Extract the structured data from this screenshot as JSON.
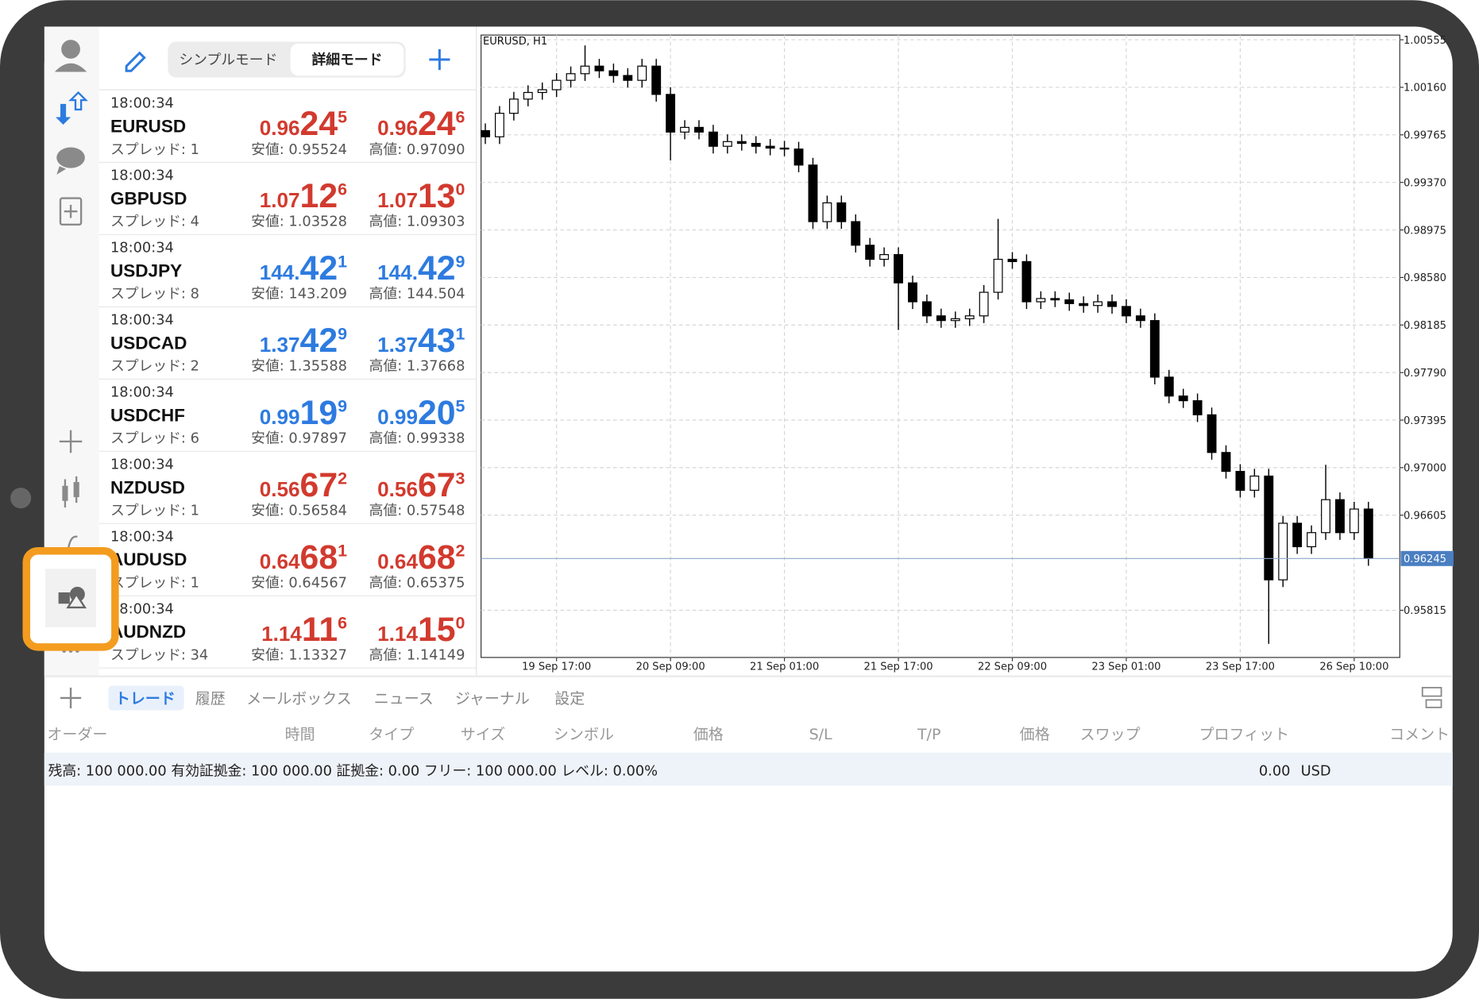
{
  "toolbar": {
    "mode_tabs": [
      "シンプルモード",
      "詳細モード"
    ]
  },
  "quotes": [
    {
      "time": "18:00:34",
      "symbol": "EURUSD",
      "color": "#d23a2e",
      "bid": [
        "0.96",
        "24",
        "5"
      ],
      "ask": [
        "0.96",
        "24",
        "6"
      ],
      "spread": "スプレッド: 1",
      "low": "安値: 0.95524",
      "high": "高値: 0.97090"
    },
    {
      "time": "18:00:34",
      "symbol": "GBPUSD",
      "color": "#d23a2e",
      "bid": [
        "1.07",
        "12",
        "6"
      ],
      "ask": [
        "1.07",
        "13",
        "0"
      ],
      "spread": "スプレッド: 4",
      "low": "安値: 1.03528",
      "high": "高値: 1.09303"
    },
    {
      "time": "18:00:34",
      "symbol": "USDJPY",
      "color": "#2d7be0",
      "bid": [
        "144.",
        "42",
        "1"
      ],
      "ask": [
        "144.",
        "42",
        "9"
      ],
      "spread": "スプレッド: 8",
      "low": "安値: 143.209",
      "high": "高値: 144.504"
    },
    {
      "time": "18:00:34",
      "symbol": "USDCAD",
      "color": "#2d7be0",
      "bid": [
        "1.37",
        "42",
        "9"
      ],
      "ask": [
        "1.37",
        "43",
        "1"
      ],
      "spread": "スプレッド: 2",
      "low": "安値: 1.35588",
      "high": "高値: 1.37668"
    },
    {
      "time": "18:00:34",
      "symbol": "USDCHF",
      "color": "#2d7be0",
      "bid": [
        "0.99",
        "19",
        "9"
      ],
      "ask": [
        "0.99",
        "20",
        "5"
      ],
      "spread": "スプレッド: 6",
      "low": "安値: 0.97897",
      "high": "高値: 0.99338"
    },
    {
      "time": "18:00:34",
      "symbol": "NZDUSD",
      "color": "#d23a2e",
      "bid": [
        "0.56",
        "67",
        "2"
      ],
      "ask": [
        "0.56",
        "67",
        "3"
      ],
      "spread": "スプレッド: 1",
      "low": "安値: 0.56584",
      "high": "高値: 0.57548"
    },
    {
      "time": "18:00:34",
      "symbol": "AUDUSD",
      "color": "#d23a2e",
      "bid": [
        "0.64",
        "68",
        "1"
      ],
      "ask": [
        "0.64",
        "68",
        "2"
      ],
      "spread": "スプレッド: 1",
      "low": "安値: 0.64567",
      "high": "高値: 0.65375"
    },
    {
      "time": "18:00:34",
      "symbol": "AUDNZD",
      "color": "#d23a2e",
      "bid": [
        "1.14",
        "11",
        "6"
      ],
      "ask": [
        "1.14",
        "15",
        "0"
      ],
      "spread": "スプレッド: 34",
      "low": "安値: 1.13327",
      "high": "高値: 1.14149"
    }
  ],
  "chart_data": {
    "type": "candlestick",
    "title": "EURUSD, H1",
    "open": [
      0.998,
      0.99749,
      0.99944,
      1.00062,
      1.00117,
      1.0014,
      1.00218,
      1.00273,
      1.00336,
      1.00297,
      1.00258,
      1.00218,
      1.00336,
      1.00101,
      0.99788,
      0.99827,
      0.99788,
      0.9967,
      0.99709,
      0.99694,
      0.9967,
      0.99655,
      0.99647,
      0.99514,
      0.99044,
      0.992,
      0.99044,
      0.98848,
      0.98731,
      0.9877,
      0.98535,
      0.98378,
      0.98261,
      0.98222,
      0.98237,
      0.98261,
      0.98457,
      0.98731,
      0.98712,
      0.98378,
      0.98405,
      0.98394,
      0.98363,
      0.98347,
      0.98378,
      0.98339,
      0.98261,
      0.98222,
      0.97752,
      0.97595,
      0.97556,
      0.97439,
      0.97126,
      0.96969,
      0.96812,
      0.9693,
      0.96068,
      0.96538,
      0.96343,
      0.9646,
      0.96734,
      0.9646,
      0.96656
    ],
    "high": [
      0.9986,
      1.00004,
      1.00122,
      1.00177,
      1.002,
      1.00278,
      1.00333,
      1.00508,
      1.00396,
      1.00357,
      1.00318,
      1.00396,
      1.00396,
      1.00161,
      0.99887,
      0.99887,
      0.99848,
      0.99769,
      0.99769,
      0.99754,
      0.9973,
      0.99715,
      0.99707,
      0.99574,
      0.9926,
      0.9926,
      0.99104,
      0.98908,
      0.9883,
      0.9883,
      0.98595,
      0.98438,
      0.98321,
      0.98297,
      0.98321,
      0.98517,
      0.99067,
      0.98791,
      0.98772,
      0.98465,
      0.98465,
      0.98454,
      0.98423,
      0.98438,
      0.98438,
      0.98399,
      0.98321,
      0.98282,
      0.97812,
      0.97655,
      0.97616,
      0.97499,
      0.97186,
      0.97029,
      0.9699,
      0.9699,
      0.96598,
      0.96598,
      0.9652,
      0.97024,
      0.96794,
      0.96716,
      0.96716
    ],
    "low": [
      0.99689,
      0.99689,
      0.99884,
      1.00002,
      1.00057,
      1.0008,
      1.00158,
      1.00213,
      1.00237,
      1.00198,
      1.00158,
      1.00158,
      1.00041,
      0.99553,
      0.99728,
      0.99728,
      0.9961,
      0.9961,
      0.99634,
      0.9961,
      0.99595,
      0.99587,
      0.99454,
      0.98984,
      0.98984,
      0.98984,
      0.98788,
      0.98671,
      0.98671,
      0.98144,
      0.98318,
      0.98201,
      0.98162,
      0.98162,
      0.98177,
      0.98201,
      0.98397,
      0.98652,
      0.98318,
      0.98318,
      0.98334,
      0.98303,
      0.98287,
      0.98287,
      0.98279,
      0.98201,
      0.98162,
      0.97692,
      0.97535,
      0.97496,
      0.97379,
      0.97066,
      0.96909,
      0.96752,
      0.96752,
      0.95536,
      0.96008,
      0.96283,
      0.96283,
      0.964,
      0.964,
      0.964,
      0.96185
    ],
    "close": [
      0.99749,
      0.99944,
      1.00062,
      1.00117,
      1.0014,
      1.00218,
      1.00273,
      1.00336,
      1.00297,
      1.00258,
      1.00218,
      1.00336,
      1.00101,
      0.99788,
      0.99827,
      0.99788,
      0.9967,
      0.99709,
      0.99694,
      0.9967,
      0.99655,
      0.99647,
      0.99514,
      0.99044,
      0.992,
      0.99044,
      0.98848,
      0.98731,
      0.9877,
      0.98535,
      0.98378,
      0.98261,
      0.98222,
      0.98237,
      0.98261,
      0.98457,
      0.98731,
      0.98712,
      0.98378,
      0.98405,
      0.98394,
      0.98363,
      0.98347,
      0.98378,
      0.98339,
      0.98261,
      0.98222,
      0.97752,
      0.97595,
      0.97556,
      0.97439,
      0.97126,
      0.96969,
      0.96812,
      0.9693,
      0.96068,
      0.96538,
      0.96343,
      0.9646,
      0.96734,
      0.9646,
      0.96656,
      0.96245
    ],
    "xlim": [
      -0.3,
      64.2
    ],
    "xticks": [
      {
        "value": 5,
        "label": "19 Sep 17:00"
      },
      {
        "value": 13,
        "label": "20 Sep 09:00"
      },
      {
        "value": 21,
        "label": "21 Sep 01:00"
      },
      {
        "value": 29,
        "label": "21 Sep 17:00"
      },
      {
        "value": 37,
        "label": "22 Sep 09:00"
      },
      {
        "value": 45,
        "label": "23 Sep 01:00"
      },
      {
        "value": 53,
        "label": "23 Sep 17:00"
      },
      {
        "value": 61,
        "label": "26 Sep 10:00"
      }
    ],
    "ylim": [
      0.95423,
      1.00594
    ],
    "yticks": [
      1.00555,
      {
        "value": 1.0016,
        "label": "1.00160"
      },
      0.99765,
      {
        "value": 0.9937,
        "label": "0.99370"
      },
      0.98975,
      {
        "value": 0.9858,
        "label": "0.98580"
      },
      0.98185,
      {
        "value": 0.9779,
        "label": "0.97790"
      },
      0.97395,
      {
        "value": 0.97,
        "label": "0.97000"
      },
      0.96605,
      0.95815
    ],
    "current_price": 0.96245,
    "grid": true,
    "up_color": "#ffffff",
    "down_color": "#000000"
  },
  "tabs": [
    "トレード",
    "履歴",
    "メールボックス",
    "ニュース",
    "ジャーナル",
    "設定"
  ],
  "columns": [
    "オーダー",
    "時間",
    "タイプ",
    "サイズ",
    "シンボル",
    "価格",
    "S/L",
    "T/P",
    "価格",
    "スワップ",
    "プロフィット",
    "コメント"
  ],
  "account": {
    "summary": "残高: 100 000.00 有効証拠金: 100 000.00 証拠金: 0.00 フリー: 100 000.00 レベル: 0.00%",
    "profit": "0.00",
    "currency": "USD"
  }
}
